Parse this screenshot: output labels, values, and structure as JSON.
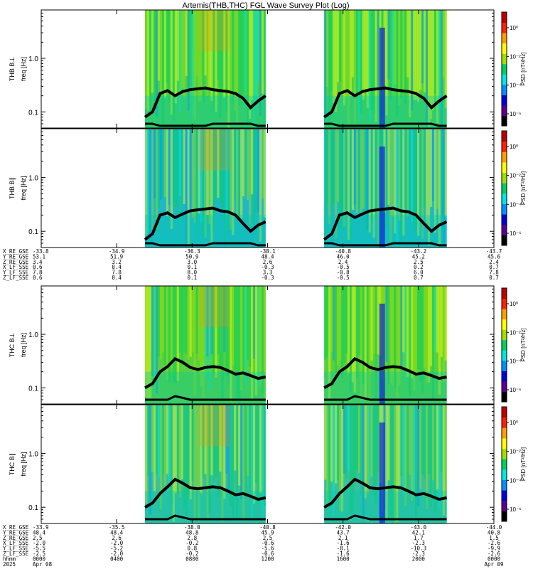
{
  "title": "Artemis(THB,THC) FGL Wave Survey Plot (Log)",
  "colors": {
    "background": "#ffffff",
    "axis": "#000000",
    "trace": "#000000"
  },
  "chart_data": {
    "type": "heatmap",
    "colorbar": {
      "label": "PSD [nT²/Hz]",
      "ticks": [
        "10⁰",
        "10⁻²",
        "10⁻⁴",
        "10⁻⁶"
      ],
      "colormap": [
        "#000000",
        "#5a0090",
        "#0000d8",
        "#0090ff",
        "#00e8e0",
        "#00d060",
        "#a0e000",
        "#ffff00",
        "#ffa000",
        "#ff2000",
        "#c00000"
      ]
    },
    "panels": [
      {
        "id": "thb-bl",
        "ylabel": "THB B⊥",
        "yunit": "freq [Hz]",
        "yticks": [
          "1.0",
          "0.1"
        ],
        "ylim": [
          0.05,
          8
        ],
        "data_intervals_hours": [
          [
            5.5,
            11.9
          ],
          [
            15.0,
            21.5
          ]
        ],
        "mean_color": "#48d050",
        "traces": {
          "upper_hz": [
            0.08,
            0.1,
            0.22,
            0.25,
            0.2,
            0.24,
            0.26,
            0.27,
            0.28,
            0.26,
            0.25,
            0.24,
            0.22,
            0.18,
            0.12,
            0.16,
            0.2
          ],
          "lower_hz": [
            0.06,
            0.06,
            0.055,
            0.055,
            0.055,
            0.055,
            0.055,
            0.055,
            0.055,
            0.06,
            0.06,
            0.06,
            0.06,
            0.06,
            0.06,
            0.055,
            0.055
          ]
        }
      },
      {
        "id": "thb-bll",
        "ylabel": "THB B∥",
        "yunit": "freq [Hz]",
        "yticks": [
          "1.0",
          "0.1"
        ],
        "ylim": [
          0.05,
          8
        ],
        "data_intervals_hours": [
          [
            5.5,
            11.9
          ],
          [
            15.0,
            21.5
          ]
        ],
        "mean_color": "#20b8c8",
        "traces": {
          "upper_hz": [
            0.07,
            0.09,
            0.2,
            0.22,
            0.18,
            0.21,
            0.24,
            0.25,
            0.26,
            0.27,
            0.24,
            0.23,
            0.2,
            0.14,
            0.1,
            0.13,
            0.15
          ],
          "lower_hz": [
            0.06,
            0.06,
            0.055,
            0.055,
            0.055,
            0.055,
            0.055,
            0.055,
            0.055,
            0.06,
            0.06,
            0.06,
            0.06,
            0.06,
            0.06,
            0.055,
            0.055
          ]
        }
      },
      {
        "id": "thc-bl",
        "ylabel": "THC B⊥",
        "yunit": "freq [Hz]",
        "yticks": [
          "1.0",
          "0.1"
        ],
        "ylim": [
          0.05,
          8
        ],
        "data_intervals_hours": [
          [
            5.5,
            11.9
          ],
          [
            15.0,
            21.5
          ]
        ],
        "mean_color": "#58d040",
        "traces": {
          "upper_hz": [
            0.1,
            0.12,
            0.2,
            0.25,
            0.35,
            0.3,
            0.24,
            0.22,
            0.24,
            0.25,
            0.24,
            0.21,
            0.18,
            0.19,
            0.17,
            0.15,
            0.16
          ],
          "lower_hz": [
            0.06,
            0.06,
            0.06,
            0.06,
            0.07,
            0.065,
            0.06,
            0.06,
            0.06,
            0.06,
            0.06,
            0.06,
            0.06,
            0.06,
            0.06,
            0.06,
            0.06
          ]
        }
      },
      {
        "id": "thc-bll",
        "ylabel": "THC B∥",
        "yunit": "freq [Hz]",
        "yticks": [
          "1.0",
          "0.1"
        ],
        "ylim": [
          0.05,
          8
        ],
        "data_intervals_hours": [
          [
            5.5,
            11.9
          ],
          [
            15.0,
            21.5
          ]
        ],
        "mean_color": "#38c0a0",
        "traces": {
          "upper_hz": [
            0.1,
            0.12,
            0.18,
            0.24,
            0.33,
            0.28,
            0.23,
            0.22,
            0.23,
            0.24,
            0.23,
            0.2,
            0.17,
            0.18,
            0.16,
            0.14,
            0.15
          ],
          "lower_hz": [
            0.06,
            0.06,
            0.06,
            0.06,
            0.07,
            0.065,
            0.06,
            0.06,
            0.06,
            0.06,
            0.06,
            0.06,
            0.06,
            0.06,
            0.06,
            0.06,
            0.06
          ]
        }
      }
    ],
    "xlim_hours": [
      0,
      24
    ],
    "xticks_hours": [
      0,
      4,
      8,
      12,
      16,
      20,
      24
    ],
    "thb_ephemeris": {
      "rows": [
        {
          "label": "X_RE_GSE",
          "values": [
            "-33.8",
            "-34.9",
            "-36.3",
            "-38.1",
            "-40.8",
            "-43.2",
            "-43.7"
          ]
        },
        {
          "label": "Y_RE_GSE",
          "values": [
            "53.1",
            "51.9",
            "50.9",
            "48.4",
            "46.0",
            "45.2",
            "45.6"
          ]
        },
        {
          "label": "Z_RE_GSE",
          "values": [
            "3.4",
            "3.2",
            "3.0",
            "2.6",
            "2.4",
            "2.5",
            "2.4"
          ]
        },
        {
          "label": "X_LF_SSE",
          "values": [
            "0.6",
            "0.4",
            "0.1",
            "-0.3",
            "-0.5",
            "0.2",
            "0.7"
          ]
        },
        {
          "label": "Y_LF_SSE",
          "values": [
            "7.8",
            "7.8",
            "8.0",
            "3.3",
            "-0.8",
            "6.0",
            "7.8"
          ]
        },
        {
          "label": "Z_LF_SSE",
          "values": [
            "0.6",
            "0.4",
            "0.1",
            "-0.3",
            "-0.5",
            "0.7",
            "0.7"
          ]
        }
      ]
    },
    "thc_ephemeris": {
      "rows": [
        {
          "label": "X_RE_GSE",
          "values": [
            "-33.9",
            "-35.5",
            "-38.0",
            "-40.8",
            "-42.0",
            "-43.0",
            "-44.0"
          ]
        },
        {
          "label": "Y_RE_GSE",
          "values": [
            "48.4",
            "48.4",
            "48.8",
            "45.9",
            "43.7",
            "42.1",
            "40.8"
          ]
        },
        {
          "label": "Z_RE_GSE",
          "values": [
            "2.5",
            "2.6",
            "2.8",
            "2.5",
            "2.1",
            "1.7",
            "1.5"
          ]
        },
        {
          "label": "X_LF_SSE",
          "values": [
            "-2.0",
            "-2.0",
            "-0.2",
            "-0.6",
            "-1.6",
            "-2.3",
            "-2.6"
          ]
        },
        {
          "label": "Y_LF_SSE",
          "values": [
            "-5.5",
            "-5.2",
            "0.8",
            "-5.6",
            "-8.1",
            "-10.3",
            "-9.9"
          ]
        },
        {
          "label": "Z_LF_SSE",
          "values": [
            "-2.5",
            "-2.0",
            "-0.2",
            "-0.6",
            "-1.6",
            "-2.3",
            "-2.6"
          ]
        }
      ],
      "hhmm_label": "hhmm",
      "hhmm": [
        "0000",
        "0400",
        "0800",
        "1200",
        "1600",
        "2000",
        "0000"
      ],
      "date_row_label": "2025",
      "date_start": "Apr 08",
      "date_end": "Apr 09"
    }
  }
}
